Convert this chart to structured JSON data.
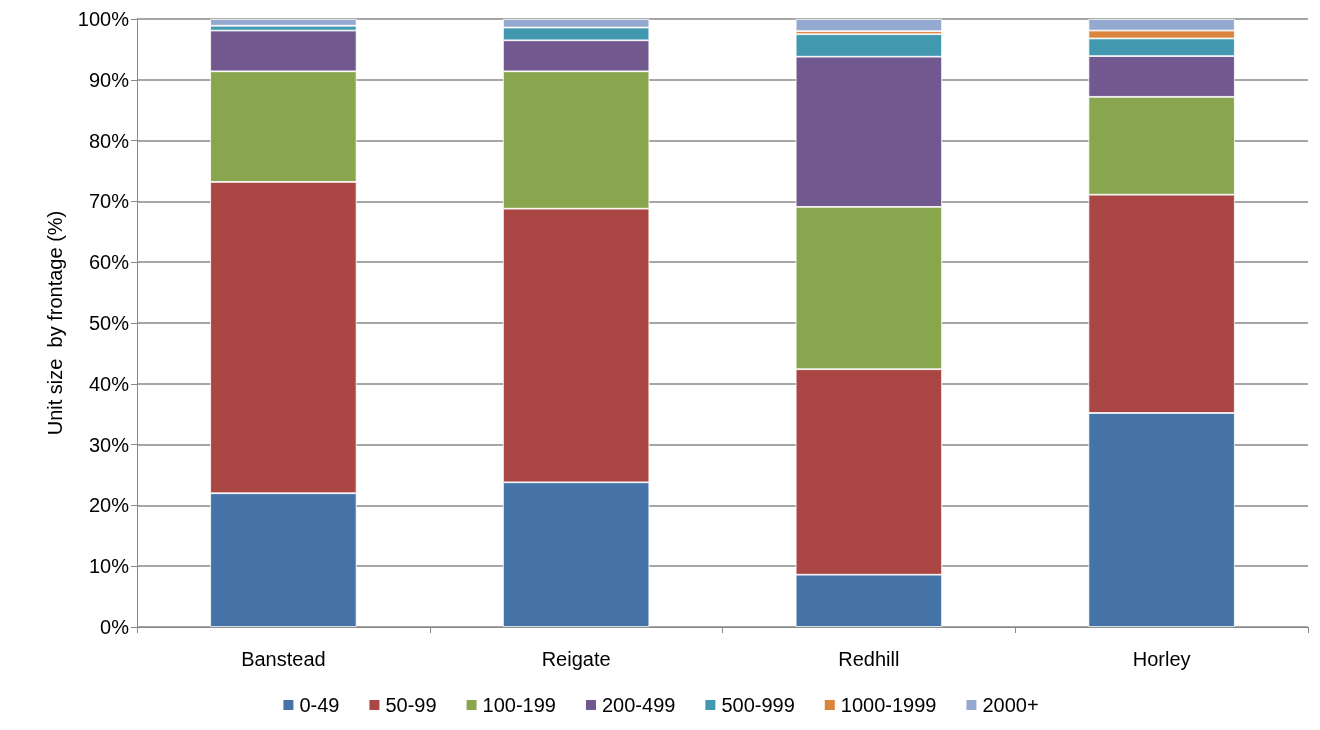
{
  "chart_data": {
    "type": "bar",
    "stacked": true,
    "ylabel": "Unit size  by frontage (%)",
    "categories": [
      "Banstead",
      "Reigate",
      "Redhill",
      "Horley"
    ],
    "series": [
      {
        "name": "0-49",
        "color": "#4572a7",
        "values": [
          22.0,
          23.8,
          8.6,
          35.2
        ]
      },
      {
        "name": "50-99",
        "color": "#aa4643",
        "values": [
          51.2,
          45.0,
          33.8,
          35.9
        ]
      },
      {
        "name": "100-199",
        "color": "#89a54e",
        "values": [
          18.2,
          22.6,
          26.7,
          16.1
        ]
      },
      {
        "name": "200-499",
        "color": "#71588f",
        "values": [
          6.7,
          5.1,
          24.7,
          6.7
        ]
      },
      {
        "name": "500-999",
        "color": "#4198af",
        "values": [
          0.8,
          2.1,
          3.7,
          2.9
        ]
      },
      {
        "name": "1000-1999",
        "color": "#db843d",
        "values": [
          0,
          0,
          0.5,
          1.3
        ]
      },
      {
        "name": "2000+",
        "color": "#93a9cf",
        "values": [
          1.1,
          1.4,
          2.0,
          1.9
        ]
      }
    ],
    "ylim": [
      0,
      100
    ],
    "yticks": [
      {
        "value": 0,
        "label": "0%"
      },
      {
        "value": 10,
        "label": "10%"
      },
      {
        "value": 20,
        "label": "20%"
      },
      {
        "value": 30,
        "label": "30%"
      },
      {
        "value": 40,
        "label": "40%"
      },
      {
        "value": 50,
        "label": "50%"
      },
      {
        "value": 60,
        "label": "60%"
      },
      {
        "value": 70,
        "label": "70%"
      },
      {
        "value": 80,
        "label": "80%"
      },
      {
        "value": 90,
        "label": "90%"
      },
      {
        "value": 100,
        "label": "100%"
      }
    ],
    "grid": "y",
    "legend": "bottom"
  }
}
